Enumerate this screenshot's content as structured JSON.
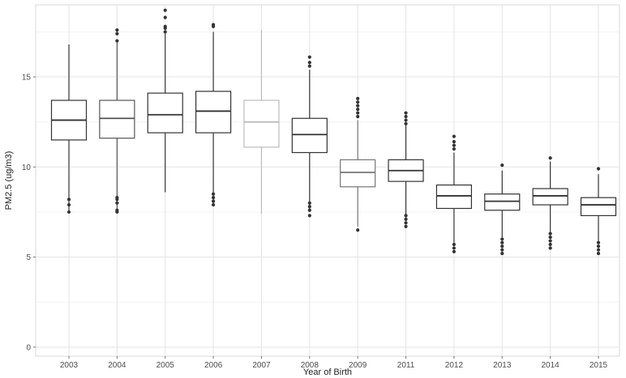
{
  "chart_data": {
    "type": "boxplot",
    "title": "",
    "xlabel": "Year of Birth",
    "ylabel": "PM2.5 (ug/m3)",
    "ylim": [
      -0.5,
      19
    ],
    "yticks": [
      0,
      5,
      10,
      15
    ],
    "grid": true,
    "legend": "none",
    "categories": [
      "2003",
      "2004",
      "2005",
      "2006",
      "2007",
      "2008",
      "2009",
      "2011",
      "2012",
      "2013",
      "2014",
      "2015"
    ],
    "boxes": [
      {
        "year": "2003",
        "whisker_low": 7.5,
        "q1": 11.5,
        "median": 12.6,
        "q3": 13.7,
        "whisker_high": 16.8,
        "outliers": [
          7.5,
          7.9,
          8.2
        ],
        "color": "#333333"
      },
      {
        "year": "2004",
        "whisker_low": 7.5,
        "q1": 11.6,
        "median": 12.7,
        "q3": 13.7,
        "whisker_high": 16.9,
        "outliers": [
          7.5,
          7.6,
          8.0,
          8.2,
          8.3,
          17.0,
          17.4,
          17.6
        ],
        "color": "#555555"
      },
      {
        "year": "2005",
        "whisker_low": 8.6,
        "q1": 11.9,
        "median": 12.9,
        "q3": 14.1,
        "whisker_high": 17.4,
        "outliers": [
          17.5,
          17.7,
          17.8,
          18.3,
          18.7
        ],
        "color": "#333333"
      },
      {
        "year": "2006",
        "whisker_low": 8.0,
        "q1": 11.9,
        "median": 13.1,
        "q3": 14.2,
        "whisker_high": 17.5,
        "outliers": [
          7.9,
          8.1,
          8.3,
          8.5,
          17.8,
          17.9
        ],
        "color": "#333333"
      },
      {
        "year": "2007",
        "whisker_low": 7.4,
        "q1": 11.1,
        "median": 12.5,
        "q3": 13.7,
        "whisker_high": 17.6,
        "outliers": [],
        "color": "#bbbbbb"
      },
      {
        "year": "2008",
        "whisker_low": 7.6,
        "q1": 10.8,
        "median": 11.8,
        "q3": 12.7,
        "whisker_high": 15.4,
        "outliers": [
          7.3,
          7.6,
          7.8,
          8.0,
          15.6,
          15.8,
          16.1
        ],
        "color": "#333333"
      },
      {
        "year": "2009",
        "whisker_low": 6.7,
        "q1": 8.9,
        "median": 9.7,
        "q3": 10.4,
        "whisker_high": 12.6,
        "outliers": [
          6.5,
          12.8,
          13.0,
          13.2,
          13.4,
          13.6,
          13.8
        ],
        "color": "#777777"
      },
      {
        "year": "2011",
        "whisker_low": 7.2,
        "q1": 9.2,
        "median": 9.8,
        "q3": 10.4,
        "whisker_high": 12.3,
        "outliers": [
          6.7,
          6.9,
          7.1,
          7.3,
          12.4,
          12.6,
          12.8,
          13.0
        ],
        "color": "#333333"
      },
      {
        "year": "2012",
        "whisker_low": 5.8,
        "q1": 7.7,
        "median": 8.4,
        "q3": 9.0,
        "whisker_high": 10.8,
        "outliers": [
          5.3,
          5.5,
          5.7,
          11.0,
          11.2,
          11.4,
          11.7
        ],
        "color": "#333333"
      },
      {
        "year": "2013",
        "whisker_low": 6.1,
        "q1": 7.6,
        "median": 8.1,
        "q3": 8.5,
        "whisker_high": 9.8,
        "outliers": [
          5.2,
          5.4,
          5.6,
          5.8,
          6.0,
          10.1
        ],
        "color": "#333333"
      },
      {
        "year": "2014",
        "whisker_low": 6.4,
        "q1": 7.9,
        "median": 8.4,
        "q3": 8.8,
        "whisker_high": 10.3,
        "outliers": [
          5.5,
          5.7,
          5.9,
          6.1,
          6.3,
          10.5
        ],
        "color": "#333333"
      },
      {
        "year": "2015",
        "whisker_low": 5.9,
        "q1": 7.3,
        "median": 7.9,
        "q3": 8.3,
        "whisker_high": 9.6,
        "outliers": [
          5.2,
          5.4,
          5.6,
          5.8,
          9.9
        ],
        "color": "#333333"
      }
    ]
  }
}
